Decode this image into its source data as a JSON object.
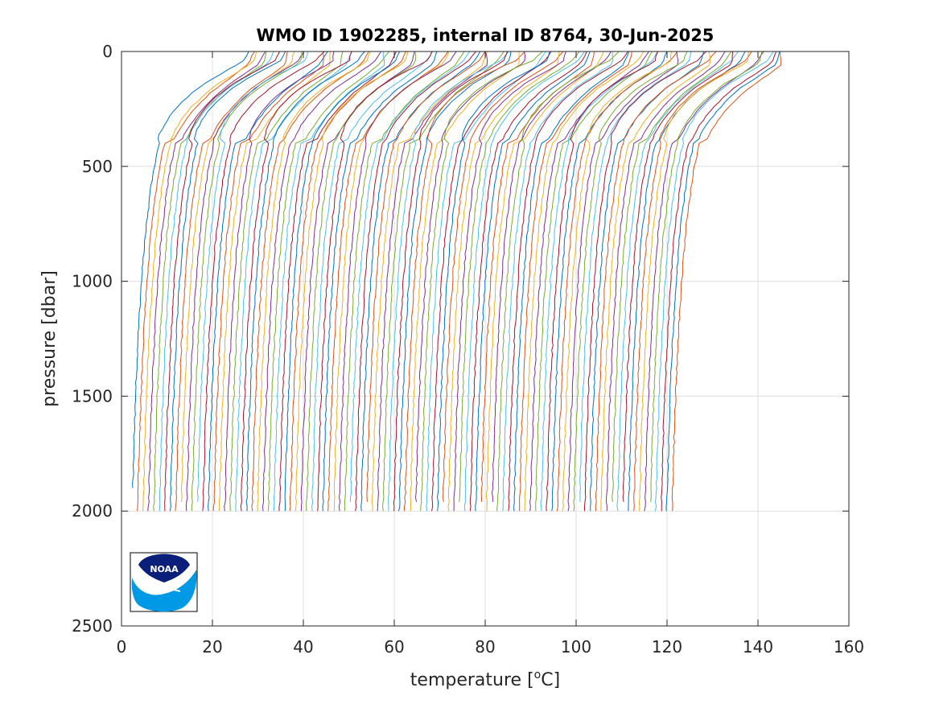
{
  "chart_data": {
    "type": "line",
    "title": "WMO ID 1902285, internal ID 8764, 30-Jun-2025",
    "xlabel": "temperature [",
    "xlabel_sup": "o",
    "xlabel_end": "C]",
    "ylabel": "pressure [dbar]",
    "xlim": [
      0,
      160
    ],
    "ylim": [
      0,
      2500
    ],
    "y_reversed": true,
    "grid": true,
    "legend": "none",
    "x_ticks": [
      "0",
      "20",
      "40",
      "60",
      "80",
      "100",
      "120",
      "140",
      "160"
    ],
    "x_tick_values": [
      0,
      20,
      40,
      60,
      80,
      100,
      120,
      140,
      160
    ],
    "y_ticks": [
      "0",
      "500",
      "1000",
      "1500",
      "2000",
      "2500"
    ],
    "y_tick_values": [
      0,
      500,
      1000,
      1500,
      2000,
      2500
    ],
    "profile_count": 100,
    "profile_x_offset_step": 1.2,
    "profile_pressure_max": 2000,
    "series_colors": [
      "#0072BD",
      "#D95319",
      "#EDB120",
      "#7E2F8E",
      "#77AC30",
      "#4DBEEE",
      "#A2142F"
    ],
    "profile_template": {
      "pressure": [
        0,
        50,
        100,
        150,
        200,
        250,
        300,
        350,
        400,
        500,
        600,
        700,
        800,
        900,
        1000,
        1200,
        1400,
        1600,
        1800,
        2000
      ],
      "temperature": [
        27.5,
        26.5,
        22.5,
        18.5,
        15.5,
        13.0,
        11.0,
        9.5,
        8.3,
        7.2,
        6.4,
        5.8,
        5.2,
        4.8,
        4.4,
        3.8,
        3.3,
        2.9,
        2.6,
        2.3
      ]
    }
  },
  "logo": {
    "name": "NOAA",
    "text": "NOAA",
    "colors": {
      "dark": "#0a1f7a",
      "light": "#0099e6"
    }
  }
}
